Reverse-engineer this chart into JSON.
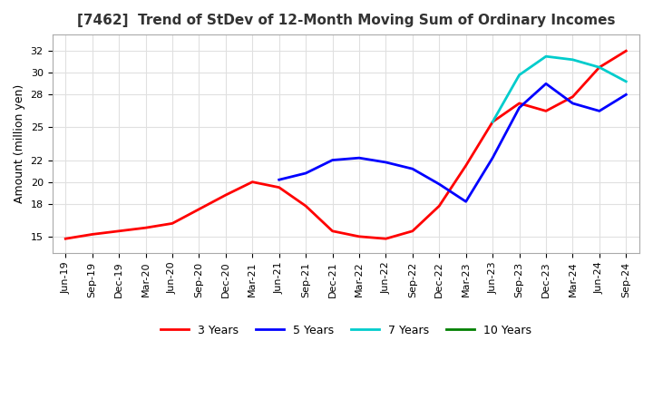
{
  "title": "[7462]  Trend of StDev of 12-Month Moving Sum of Ordinary Incomes",
  "ylabel": "Amount (million yen)",
  "yticks": [
    15,
    18,
    20,
    22,
    25,
    28,
    30,
    32
  ],
  "ylim": [
    13.5,
    33.5
  ],
  "line_colors": {
    "3 Years": "#FF0000",
    "5 Years": "#0000FF",
    "7 Years": "#00CCCC",
    "10 Years": "#008000"
  },
  "x_labels": [
    "Jun-19",
    "Sep-19",
    "Dec-19",
    "Mar-20",
    "Jun-20",
    "Sep-20",
    "Dec-20",
    "Mar-21",
    "Jun-21",
    "Sep-21",
    "Dec-21",
    "Mar-22",
    "Jun-22",
    "Sep-22",
    "Dec-22",
    "Mar-23",
    "Jun-23",
    "Sep-23",
    "Dec-23",
    "Mar-24",
    "Jun-24",
    "Sep-24"
  ],
  "data_3y": [
    14.8,
    15.2,
    15.5,
    15.8,
    16.2,
    17.5,
    18.8,
    20.0,
    19.5,
    17.8,
    15.5,
    15.0,
    14.8,
    15.5,
    17.8,
    21.5,
    25.5,
    27.2,
    26.5,
    27.8,
    30.5,
    32.0
  ],
  "data_5y": [
    null,
    null,
    null,
    null,
    null,
    null,
    null,
    null,
    20.2,
    20.8,
    22.0,
    22.2,
    21.8,
    21.2,
    19.8,
    18.2,
    22.2,
    26.8,
    29.0,
    27.2,
    26.5,
    28.0
  ],
  "data_7y": [
    null,
    null,
    null,
    null,
    null,
    null,
    null,
    null,
    null,
    null,
    null,
    null,
    null,
    null,
    null,
    null,
    25.5,
    29.8,
    31.5,
    31.2,
    30.5,
    29.2
  ],
  "data_10y": [
    null,
    null,
    null,
    null,
    null,
    null,
    null,
    null,
    null,
    null,
    null,
    null,
    null,
    null,
    null,
    null,
    null,
    null,
    null,
    null,
    null,
    null
  ],
  "background_color": "#FFFFFF",
  "grid_color": "#E0E0E0"
}
